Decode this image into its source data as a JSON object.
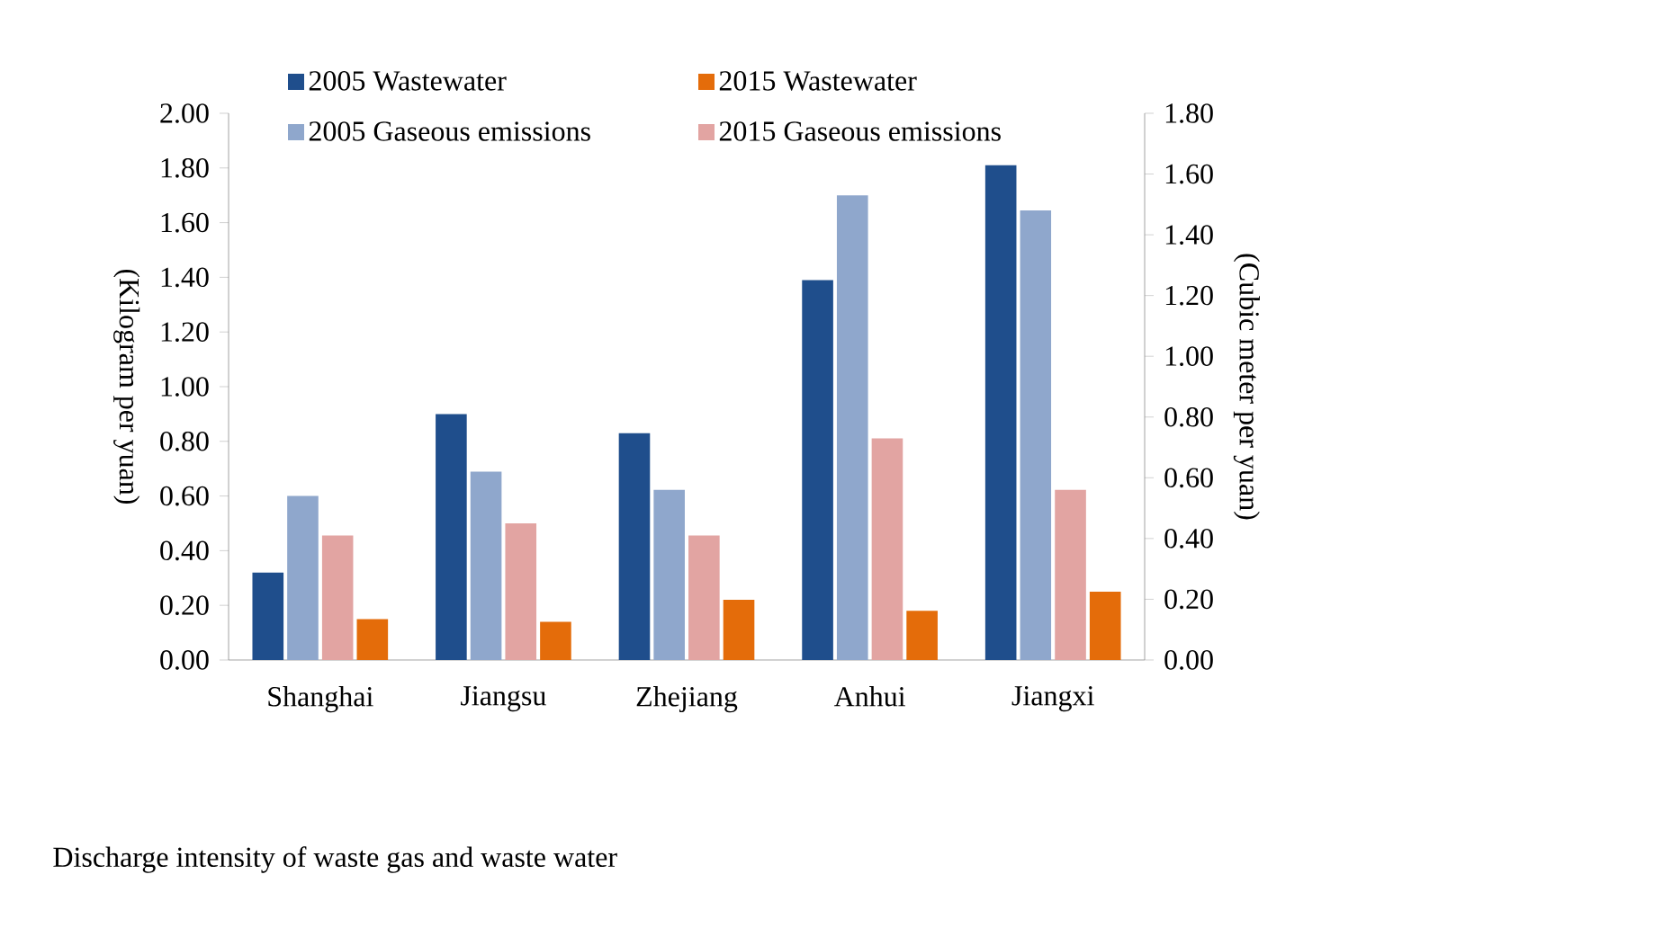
{
  "chart_data": {
    "type": "bar",
    "categories": [
      "Shanghai",
      "Jiangsu",
      "Zhejiang",
      "Anhui",
      "Jiangxi"
    ],
    "ylabel": "(Kilogram per yuan)",
    "y2label": "(Cubic meter per yuan)",
    "ylim": [
      0,
      2
    ],
    "yticks": [
      {
        "value": 0,
        "label": "0.00"
      },
      {
        "value": 0.2,
        "label": "0.20"
      },
      {
        "value": 0.4,
        "label": "0.40"
      },
      {
        "value": 0.6,
        "label": "0.60"
      },
      {
        "value": 0.8,
        "label": "0.80"
      },
      {
        "value": 1,
        "label": "1.00"
      },
      {
        "value": 1.2,
        "label": "1.20"
      },
      {
        "value": 1.4,
        "label": "1.40"
      },
      {
        "value": 1.6,
        "label": "1.60"
      },
      {
        "value": 1.8,
        "label": "1.80"
      },
      {
        "value": 2,
        "label": "2.00"
      }
    ],
    "y2lim": [
      0,
      1.8
    ],
    "y2ticks": [
      {
        "value": 0,
        "label": "0.00"
      },
      {
        "value": 0.2,
        "label": "0.20"
      },
      {
        "value": 0.4,
        "label": "0.40"
      },
      {
        "value": 0.6,
        "label": "0.60"
      },
      {
        "value": 0.8,
        "label": "0.80"
      },
      {
        "value": 1,
        "label": "1.00"
      },
      {
        "value": 1.2,
        "label": "1.20"
      },
      {
        "value": 1.4,
        "label": "1.40"
      },
      {
        "value": 1.6,
        "label": "1.60"
      },
      {
        "value": 1.8,
        "label": "1.80"
      }
    ],
    "series": [
      {
        "name": "2005 Wastewater",
        "color": "#1f4e8c",
        "values": [
          0.32,
          0.9,
          0.83,
          1.39,
          1.81
        ]
      },
      {
        "name": "2015 Wastewater",
        "color": "#e46c0a",
        "values": [
          0.15,
          0.14,
          0.22,
          0.18,
          0.25
        ]
      },
      {
        "name": "2005 Gaseous emissions",
        "color": "#8fa7cc",
        "axis": "y2",
        "values": [
          0.54,
          0.62,
          0.56,
          1.53,
          1.48
        ]
      },
      {
        "name": "2015 Gaseous emissions",
        "color": "#e2a4a2",
        "axis": "y2",
        "values": [
          0.41,
          0.45,
          0.41,
          0.73,
          0.56
        ]
      }
    ],
    "legend": "top",
    "grid": false,
    "annotations": [
      "Discharge intensity of waste gas and waste water"
    ]
  }
}
